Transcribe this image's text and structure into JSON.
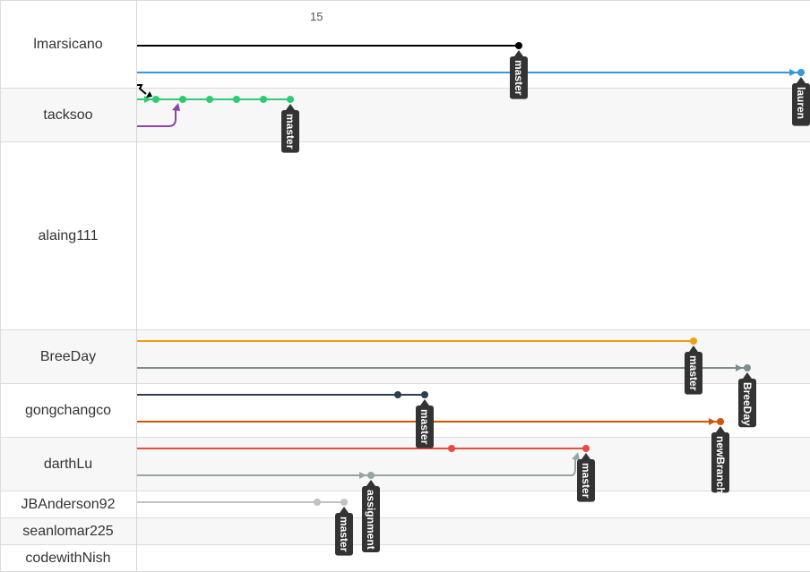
{
  "axis": {
    "tick_label": "15"
  },
  "users": [
    {
      "name": "lmarsicano",
      "height": 98,
      "alt": false
    },
    {
      "name": "tacksoo",
      "height": 60,
      "alt": true
    },
    {
      "name": "alaing111",
      "height": 210,
      "alt": false
    },
    {
      "name": "BreeDay",
      "height": 60,
      "alt": true
    },
    {
      "name": "gongchangco",
      "height": 60,
      "alt": false
    },
    {
      "name": "darthLu",
      "height": 60,
      "alt": true
    },
    {
      "name": "JBAnderson92",
      "height": 30,
      "alt": false
    },
    {
      "name": "seanlomar225",
      "height": 30,
      "alt": true
    },
    {
      "name": "codewithNish",
      "height": 30,
      "alt": false
    }
  ],
  "branches": [
    {
      "user": "lmarsicano",
      "lane": 0,
      "color": "#000000",
      "end": 15.75,
      "commits": [
        15.75
      ],
      "arrow": false,
      "tag": "master"
    },
    {
      "user": "lmarsicano",
      "lane": 1,
      "color": "#3498db",
      "end": 16.8,
      "commits": [
        16.8
      ],
      "arrow": true,
      "tag": "lauren"
    },
    {
      "user": "tacksoo",
      "lane": 0,
      "color": "#2ecc71",
      "end": 14.9,
      "commits": [
        14.4,
        14.5,
        14.6,
        14.7,
        14.8,
        14.9
      ],
      "arrow": true,
      "tag": "master"
    },
    {
      "user": "tacksoo",
      "lane": 1,
      "color": "#8e44ad",
      "end": 14.5,
      "commits": [],
      "arrow": false,
      "tag": ""
    },
    {
      "user": "BreeDay",
      "lane": 0,
      "color": "#f39c12",
      "end": 16.4,
      "commits": [
        16.4
      ],
      "arrow": false,
      "tag": "master"
    },
    {
      "user": "BreeDay",
      "lane": 1,
      "color": "#7f8c8d",
      "end": 16.6,
      "commits": [
        16.6
      ],
      "arrow": true,
      "tag": "BreeDay"
    },
    {
      "user": "gongchangco",
      "lane": 0,
      "color": "#2c3e50",
      "end": 15.4,
      "commits": [
        15.3,
        15.4
      ],
      "arrow": false,
      "tag": "master"
    },
    {
      "user": "gongchangco",
      "lane": 1,
      "color": "#d35400",
      "end": 16.5,
      "commits": [
        16.5
      ],
      "arrow": true,
      "tag": "newBranch"
    },
    {
      "user": "darthLu",
      "lane": 0,
      "color": "#e74c3c",
      "end": 16.0,
      "commits": [
        15.5,
        16.0
      ],
      "arrow": false,
      "tag": "master"
    },
    {
      "user": "darthLu",
      "lane": 1,
      "color": "#95a5a6",
      "end": 15.2,
      "commits": [
        15.2
      ],
      "arrow": true,
      "tag": "assignment"
    },
    {
      "user": "JBAnderson92",
      "lane": 0,
      "color": "#bdc3c7",
      "end": 15.1,
      "commits": [
        15.0,
        15.1
      ],
      "arrow": false,
      "tag": "master"
    }
  ],
  "merges": [
    {
      "from": "tacksoo",
      "from_lane": 1,
      "to_lane": 0,
      "at": 14.5,
      "color": "#8e44ad"
    },
    {
      "from": "darthLu",
      "from_lane": 1,
      "to_lane": 0,
      "at": 16.0,
      "color": "#95a5a6"
    }
  ],
  "tags": [
    {
      "text": "master"
    },
    {
      "text": "lauren"
    },
    {
      "text": "master"
    },
    {
      "text": "master"
    },
    {
      "text": "BreeDay"
    },
    {
      "text": "master"
    },
    {
      "text": "newBranch"
    },
    {
      "text": "master"
    },
    {
      "text": "assignment"
    },
    {
      "text": "master"
    }
  ]
}
